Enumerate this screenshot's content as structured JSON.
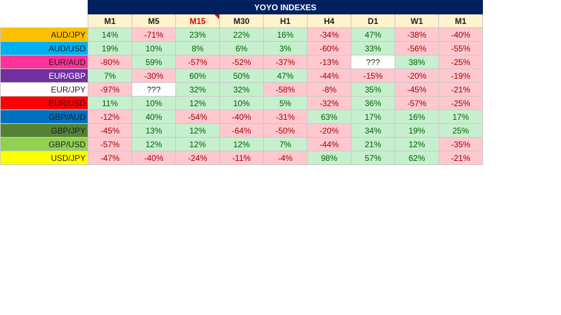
{
  "title": "YOYO INDEXES",
  "headers": [
    {
      "label": "M1",
      "color": "#1f1f1f"
    },
    {
      "label": "M5",
      "color": "#1f1f1f"
    },
    {
      "label": "M15",
      "color": "#e00000",
      "comment": true
    },
    {
      "label": "M30",
      "color": "#1f1f1f"
    },
    {
      "label": "H1",
      "color": "#1f1f1f"
    },
    {
      "label": "H4",
      "color": "#1f1f1f"
    },
    {
      "label": "D1",
      "color": "#1f1f1f"
    },
    {
      "label": "W1",
      "color": "#1f1f1f"
    },
    {
      "label": "M1",
      "color": "#1f1f1f"
    }
  ],
  "colors": {
    "positive_bg": "#c6efce",
    "positive_text": "#006100",
    "negative_bg": "#ffc7ce",
    "negative_text": "#9c0006",
    "title_bg": "#002060",
    "header_bg": "#fff2cc"
  },
  "rows": [
    {
      "pair": "AUD/JPY",
      "color": "#ffc000",
      "text_color": "#1f1f1f",
      "values": [
        "14%",
        "-71%",
        "23%",
        "22%",
        "16%",
        "-34%",
        "47%",
        "-38%",
        "-40%"
      ]
    },
    {
      "pair": "AUD/USD",
      "color": "#00b0f0",
      "text_color": "#1f1f1f",
      "values": [
        "19%",
        "10%",
        "8%",
        "6%",
        "3%",
        "-60%",
        "33%",
        "-56%",
        "-55%"
      ]
    },
    {
      "pair": "EUR/AUD",
      "color": "#ff3399",
      "text_color": "#1f1f1f",
      "values": [
        "-80%",
        "59%",
        "-57%",
        "-52%",
        "-37%",
        "-13%",
        "???",
        "38%",
        "-25%"
      ]
    },
    {
      "pair": "EUR/GBP",
      "color": "#7030a0",
      "text_color": "#ffffff",
      "values": [
        "7%",
        "-30%",
        "60%",
        "50%",
        "47%",
        "-44%",
        "-15%",
        "-20%",
        "-19%"
      ]
    },
    {
      "pair": "EUR/JPY",
      "color": "#ffffff",
      "text_color": "#1f1f1f",
      "values": [
        "-97%",
        "???",
        "32%",
        "32%",
        "-58%",
        "-8%",
        "35%",
        "-45%",
        "-21%"
      ]
    },
    {
      "pair": "EUR/USD",
      "color": "#ff0000",
      "text_color": "#1f1f1f",
      "values": [
        "11%",
        "10%",
        "12%",
        "10%",
        "5%",
        "-32%",
        "36%",
        "-57%",
        "-25%"
      ]
    },
    {
      "pair": "GBP/AUD",
      "color": "#0070c0",
      "text_color": "#1f1f1f",
      "values": [
        "-12%",
        "40%",
        "-54%",
        "-40%",
        "-31%",
        "63%",
        "17%",
        "16%",
        "17%"
      ]
    },
    {
      "pair": "GBP/JPY",
      "color": "#548235",
      "text_color": "#1f1f1f",
      "values": [
        "-45%",
        "13%",
        "12%",
        "-64%",
        "-50%",
        "-20%",
        "34%",
        "19%",
        "25%"
      ]
    },
    {
      "pair": "GBP/USD",
      "color": "#92d050",
      "text_color": "#1f1f1f",
      "values": [
        "-57%",
        "12%",
        "12%",
        "12%",
        "7%",
        "-44%",
        "21%",
        "12%",
        "-35%"
      ]
    },
    {
      "pair": "USD/JPY",
      "color": "#ffff00",
      "text_color": "#1f1f1f",
      "values": [
        "-47%",
        "-40%",
        "-24%",
        "-11%",
        "-4%",
        "98%",
        "57%",
        "62%",
        "-21%"
      ]
    }
  ]
}
